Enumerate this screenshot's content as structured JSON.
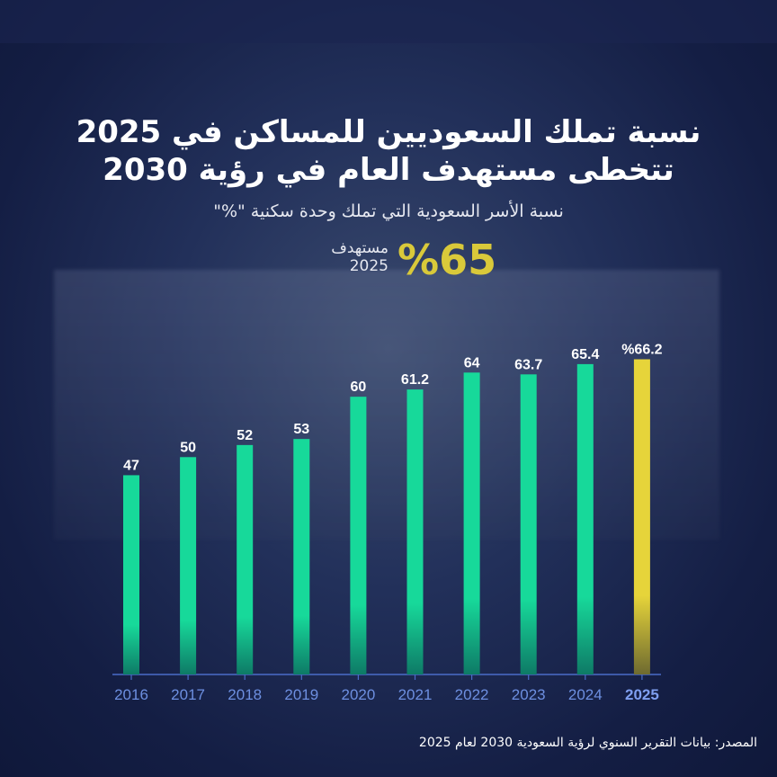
{
  "title_line1": "نسبة تملك السعوديين للمساكن في 2025",
  "title_line2": "تتخطى مستهدف العام في رؤية 2030",
  "subtitle": "نسبة الأسر السعودية التي تملك وحدة سكنية \"%\"",
  "target": {
    "value_label": "%65",
    "label": "مستهدف",
    "year": "2025",
    "color": "#d9c93a"
  },
  "source": "المصدر: بيانات التقرير السنوي لرؤية السعودية 2030 لعام 2025",
  "chart_data": {
    "type": "bar",
    "categories": [
      "2016",
      "2017",
      "2018",
      "2019",
      "2020",
      "2021",
      "2022",
      "2023",
      "2024",
      "2025"
    ],
    "values": [
      47,
      50,
      52,
      53,
      60,
      61.2,
      64,
      63.7,
      65.4,
      66.2
    ],
    "data_labels": [
      "47",
      "50",
      "52",
      "53",
      "60",
      "61.2",
      "64",
      "63.7",
      "65.4",
      "%66.2"
    ],
    "ylim": [
      14,
      70
    ],
    "grid": false,
    "colors": {
      "bar": "#17d99a",
      "highlight": "#e6d43a",
      "axis": "#4a6cc8",
      "tick_label": "#6d8fe0",
      "highlight_label": "#7f9ff0"
    },
    "highlight_category": "2025"
  }
}
